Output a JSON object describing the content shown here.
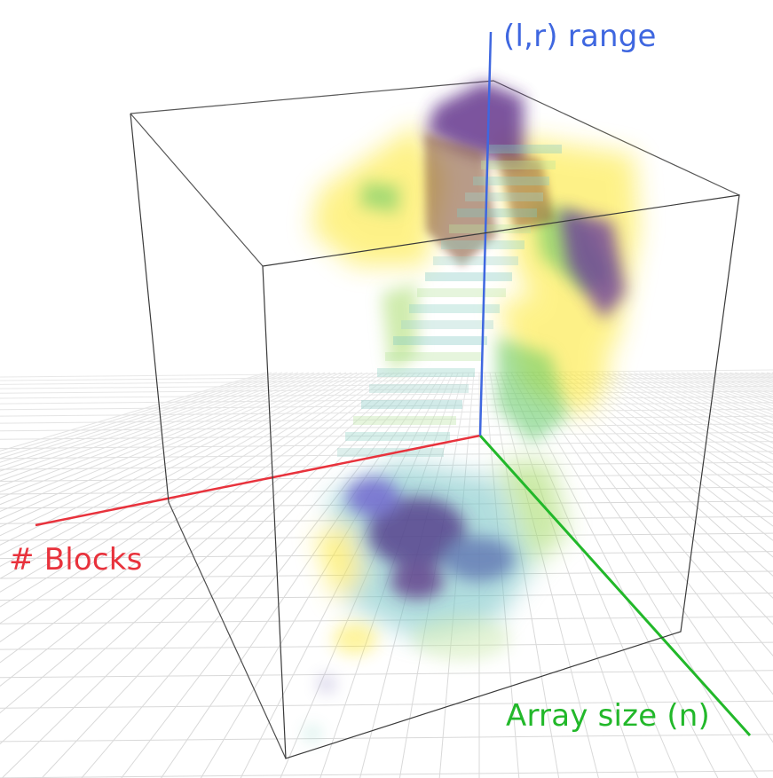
{
  "axes": {
    "z_label": "(l,r)  range",
    "x_label": "# Blocks",
    "y_label": "Array size (n)"
  },
  "colors": {
    "z_axis": "#3f67e0",
    "x_axis": "#e8323c",
    "y_axis": "#22b82a",
    "box_edges": "#3a3a3a",
    "floor_grid": "#dcdcdc",
    "volume_palette": [
      "#440154",
      "#3b528b",
      "#21908d",
      "#5dc863",
      "#fde725"
    ]
  }
}
